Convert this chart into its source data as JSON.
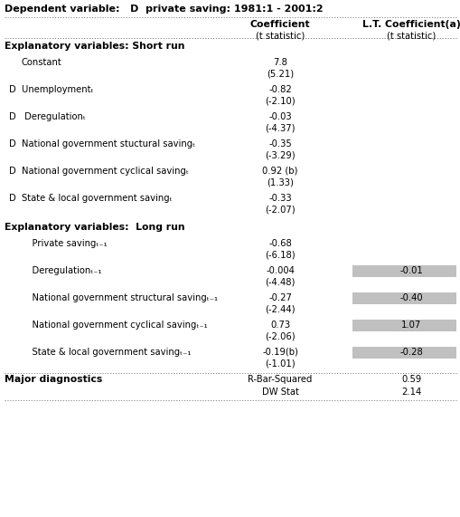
{
  "title": "Dependent variable:   D  private saving: 1981:1 - 2001:2",
  "col1_header": "Coefficient",
  "col1_sub": "(t statistic)",
  "col2_header": "L.T. Coefficient(a)",
  "col2_sub": "(t statistic)",
  "rows": [
    {
      "label": "Explanatory variables: Short run",
      "type": "section_header"
    },
    {
      "label": "Constant",
      "type": "data",
      "indent": 1,
      "coef": "7.8",
      "tstat": "(5.21)",
      "lt_coef": "",
      "lt_shaded": false
    },
    {
      "label": "D  Unemploymentₜ",
      "type": "data",
      "indent": 0,
      "coef": "-0.82",
      "tstat": "(-2.10)",
      "lt_coef": "",
      "lt_shaded": false
    },
    {
      "label": "D   Deregulationₜ",
      "type": "data",
      "indent": 0,
      "coef": "-0.03",
      "tstat": "(-4.37)",
      "lt_coef": "",
      "lt_shaded": false
    },
    {
      "label": "D  National government stuctural savingₜ",
      "type": "data",
      "indent": 0,
      "coef": "-0.35",
      "tstat": "(-3.29)",
      "lt_coef": "",
      "lt_shaded": false
    },
    {
      "label": "D  National government cyclical savingₜ",
      "type": "data",
      "indent": 0,
      "coef": "0.92 (b)",
      "tstat": "(1.33)",
      "lt_coef": "",
      "lt_shaded": false
    },
    {
      "label": "D  State & local government savingₜ",
      "type": "data",
      "indent": 0,
      "coef": "-0.33",
      "tstat": "(-2.07)",
      "lt_coef": "",
      "lt_shaded": false
    },
    {
      "label": "Explanatory variables:  Long run",
      "type": "section_header"
    },
    {
      "label": "    Private savingₜ₋₁",
      "type": "data",
      "indent": 1,
      "coef": "-0.68",
      "tstat": "(-6.18)",
      "lt_coef": "",
      "lt_shaded": false
    },
    {
      "label": "    Deregulationₜ₋₁",
      "type": "data",
      "indent": 1,
      "coef": "-0.004",
      "tstat": "(-4.48)",
      "lt_coef": "-0.01",
      "lt_shaded": true
    },
    {
      "label": "    National government structural savingₜ₋₁",
      "type": "data",
      "indent": 1,
      "coef": "-0.27",
      "tstat": "(-2.44)",
      "lt_coef": "-0.40",
      "lt_shaded": true
    },
    {
      "label": "    National government cyclical savingₜ₋₁",
      "type": "data",
      "indent": 1,
      "coef": "0.73",
      "tstat": "(-2.06)",
      "lt_coef": "1.07",
      "lt_shaded": true
    },
    {
      "label": "    State & local government savingₜ₋₁",
      "type": "data",
      "indent": 1,
      "coef": "-0.19(b)",
      "tstat": "(-1.01)",
      "lt_coef": "-0.28",
      "lt_shaded": true
    }
  ],
  "diagnostics": [
    {
      "label": "R-Bar-Squared",
      "value": "0.59"
    },
    {
      "label": "DW Stat",
      "value": "2.14"
    }
  ],
  "bg_color": "#ffffff",
  "shaded_color": "#c0c0c0",
  "text_color": "#000000"
}
